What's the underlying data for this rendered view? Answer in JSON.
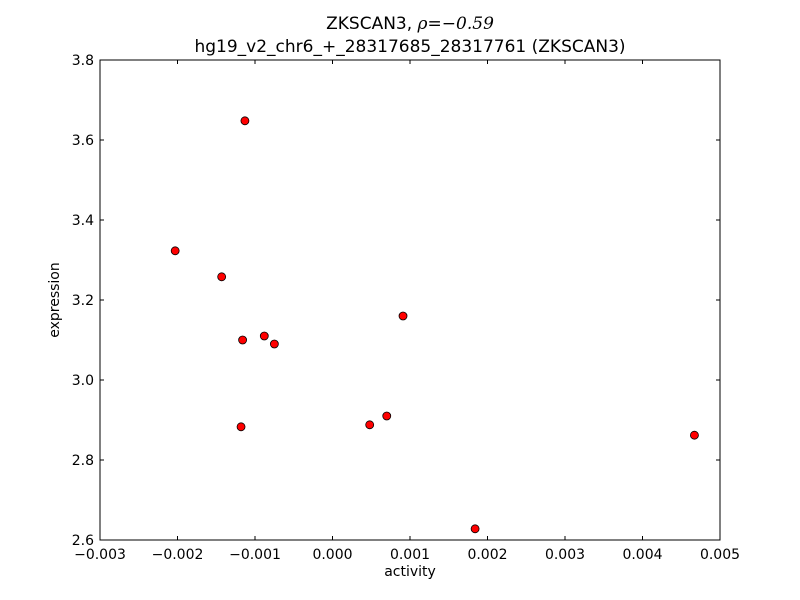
{
  "chart_data": {
    "type": "scatter",
    "title_prefix": "ZKSCAN3, ",
    "title_rho_symbol": "ρ",
    "title_rho_value": "=−0.59",
    "subtitle": "hg19_v2_chr6_+_28317685_28317761 (ZKSCAN3)",
    "xlabel": "activity",
    "ylabel": "expression",
    "xlim": [
      -0.003,
      0.005
    ],
    "ylim": [
      2.6,
      3.8
    ],
    "x_ticks": [
      -0.003,
      -0.002,
      -0.001,
      0.0,
      0.001,
      0.002,
      0.003,
      0.004,
      0.005
    ],
    "x_tick_labels": [
      "−0.003",
      "−0.002",
      "−0.001",
      "0.000",
      "0.001",
      "0.002",
      "0.003",
      "0.004",
      "0.005"
    ],
    "y_ticks": [
      2.6,
      2.8,
      3.0,
      3.2,
      3.4,
      3.6,
      3.8
    ],
    "y_tick_labels": [
      "2.6",
      "2.8",
      "3.0",
      "3.2",
      "3.4",
      "3.6",
      "3.8"
    ],
    "grid": false,
    "marker_color": "#ff0000",
    "marker_edge_color": "#000000",
    "points": [
      {
        "x": -0.00113,
        "y": 3.648
      },
      {
        "x": -0.00203,
        "y": 3.323
      },
      {
        "x": -0.00143,
        "y": 3.258
      },
      {
        "x": -0.00088,
        "y": 3.11
      },
      {
        "x": -0.00116,
        "y": 3.1
      },
      {
        "x": -0.00075,
        "y": 3.09
      },
      {
        "x": 0.00091,
        "y": 3.16
      },
      {
        "x": 0.0007,
        "y": 2.91
      },
      {
        "x": 0.00048,
        "y": 2.888
      },
      {
        "x": -0.00118,
        "y": 2.883
      },
      {
        "x": 0.00467,
        "y": 2.862
      },
      {
        "x": 0.00184,
        "y": 2.628
      }
    ]
  }
}
